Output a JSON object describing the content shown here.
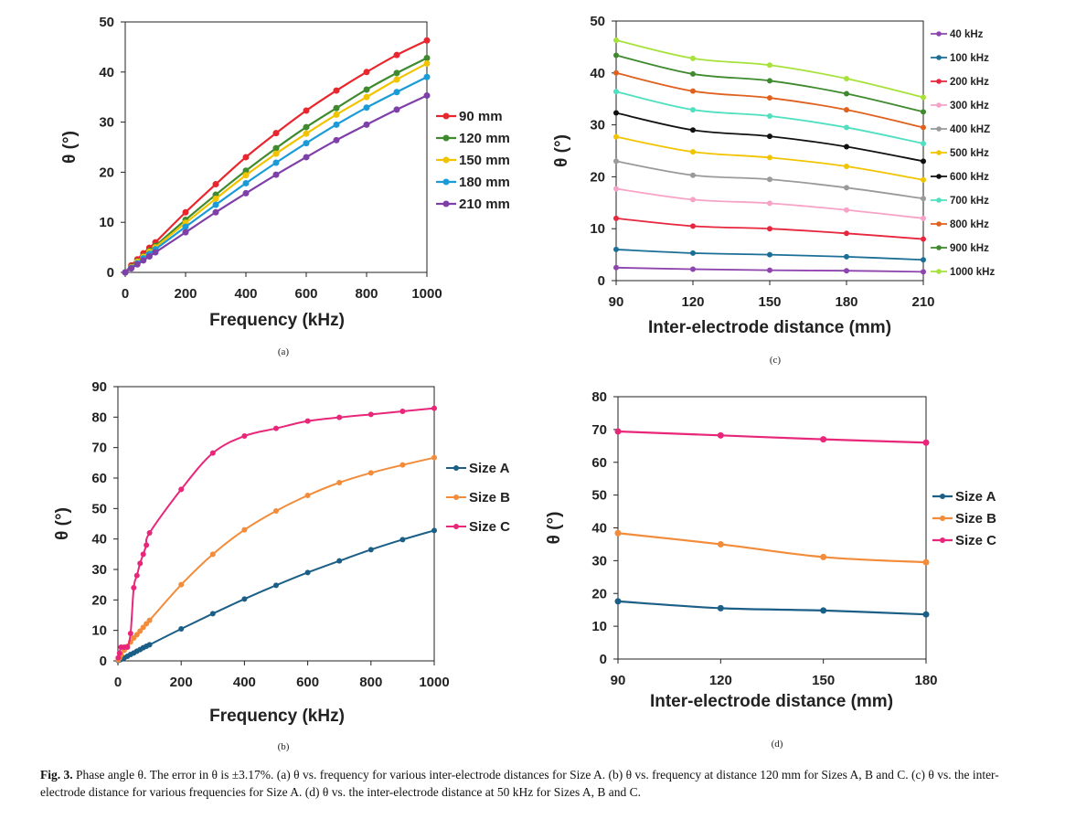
{
  "caption": {
    "label": "Fig. 3.",
    "text": "Phase angle θ. The error in θ is ±3.17%. (a) θ vs. frequency for various inter-electrode distances for Size A. (b) θ vs. frequency at distance 120 mm for Sizes A, B and C. (c) θ vs. the inter-electrode distance for various frequencies for Size A. (d) θ vs. the inter-electrode distance at 50 kHz for Sizes A, B and C."
  },
  "chart_data": [
    {
      "id": "a",
      "sublabel": "(a)",
      "type": "line",
      "xlabel": "Frequency (kHz)",
      "ylabel": "θ (°)",
      "xlim": [
        0,
        1000
      ],
      "ylim": [
        0,
        50
      ],
      "xticks": [
        0,
        200,
        400,
        600,
        800,
        1000
      ],
      "yticks": [
        0,
        10,
        20,
        30,
        40,
        50
      ],
      "grid": false,
      "legend": "center-right",
      "x": [
        0,
        20,
        40,
        60,
        80,
        100,
        200,
        300,
        400,
        500,
        600,
        700,
        800,
        900,
        1000
      ],
      "series": [
        {
          "name": "90 mm",
          "color": "#e8262d",
          "values": [
            0,
            1.4,
            2.6,
            3.8,
            4.9,
            6.0,
            12.0,
            17.6,
            23.0,
            27.8,
            32.3,
            36.3,
            40.0,
            43.4,
            46.3
          ]
        },
        {
          "name": "120 mm",
          "color": "#3f8a2e",
          "values": [
            0,
            1.1,
            2.2,
            3.2,
            4.3,
            5.3,
            10.5,
            15.5,
            20.3,
            24.8,
            29.0,
            32.8,
            36.5,
            39.8,
            42.8
          ]
        },
        {
          "name": "150 mm",
          "color": "#f2c400",
          "values": [
            0,
            1.0,
            2.1,
            3.1,
            4.1,
            5.0,
            9.9,
            14.7,
            19.4,
            23.7,
            27.7,
            31.5,
            35.0,
            38.5,
            41.7
          ]
        },
        {
          "name": "180 mm",
          "color": "#1a9bd7",
          "values": [
            0,
            0.9,
            1.8,
            2.8,
            3.7,
            4.6,
            9.1,
            13.5,
            17.8,
            21.9,
            25.8,
            29.5,
            32.9,
            36.0,
            39.0
          ]
        },
        {
          "name": "210 mm",
          "color": "#7e3fa8",
          "values": [
            0,
            0.8,
            1.6,
            2.4,
            3.2,
            4.0,
            8.0,
            12.0,
            15.8,
            19.5,
            23.0,
            26.4,
            29.5,
            32.5,
            35.3
          ]
        }
      ]
    },
    {
      "id": "b",
      "sublabel": "(b)",
      "type": "line",
      "xlabel": "Frequency (kHz)",
      "ylabel": "θ (°)",
      "xlim": [
        0,
        1000
      ],
      "ylim": [
        0,
        90
      ],
      "xticks": [
        0,
        200,
        400,
        600,
        800,
        1000
      ],
      "yticks": [
        0,
        10,
        20,
        30,
        40,
        50,
        60,
        70,
        80,
        90
      ],
      "grid": false,
      "legend": "right",
      "series": [
        {
          "name": "Size A",
          "color": "#1b5e86",
          "x": [
            1,
            5,
            10,
            20,
            30,
            40,
            50,
            60,
            70,
            80,
            90,
            100,
            200,
            300,
            400,
            500,
            600,
            700,
            800,
            900,
            1000
          ],
          "values": [
            0.1,
            0.3,
            0.5,
            1.0,
            1.5,
            2.1,
            2.6,
            3.2,
            3.7,
            4.3,
            4.8,
            5.3,
            10.5,
            15.5,
            20.3,
            24.8,
            29.0,
            32.8,
            36.5,
            39.8,
            42.8
          ]
        },
        {
          "name": "Size B",
          "color": "#f28c3a",
          "x": [
            1,
            5,
            10,
            20,
            30,
            40,
            50,
            60,
            70,
            80,
            90,
            100,
            200,
            300,
            400,
            500,
            600,
            700,
            800,
            900,
            1000
          ],
          "values": [
            0.3,
            1.0,
            2.0,
            3.5,
            4.8,
            6.2,
            7.5,
            8.6,
            9.8,
            11.0,
            12.2,
            13.3,
            25.0,
            35.0,
            43.0,
            49.2,
            54.3,
            58.5,
            61.7,
            64.3,
            66.7
          ]
        },
        {
          "name": "Size C",
          "color": "#e8267a",
          "x": [
            1,
            5,
            10,
            20,
            30,
            40,
            50,
            60,
            70,
            80,
            90,
            100,
            200,
            300,
            400,
            500,
            600,
            700,
            800,
            900,
            1000
          ],
          "values": [
            1.0,
            2.5,
            4.5,
            4.5,
            4.5,
            9.0,
            24.0,
            28.0,
            32.0,
            35.0,
            38.0,
            42.0,
            56.3,
            68.2,
            73.8,
            76.3,
            78.7,
            79.9,
            80.9,
            81.9,
            82.9
          ]
        }
      ]
    },
    {
      "id": "c",
      "sublabel": "(c)",
      "type": "line",
      "xlabel": "Inter-electrode distance (mm)",
      "ylabel": "θ (°)",
      "xlim": [
        90,
        210
      ],
      "ylim": [
        0,
        50
      ],
      "xticks": [
        90,
        120,
        150,
        180,
        210
      ],
      "yticks": [
        0,
        10,
        20,
        30,
        40,
        50
      ],
      "grid": false,
      "legend": "right",
      "x": [
        90,
        120,
        150,
        180,
        210
      ],
      "series": [
        {
          "name": "40 kHz",
          "color": "#8e44ad",
          "values": [
            2.5,
            2.2,
            2.0,
            1.9,
            1.7
          ]
        },
        {
          "name": "100 kHz",
          "color": "#1b6e96",
          "values": [
            6.0,
            5.3,
            5.0,
            4.6,
            4.0
          ]
        },
        {
          "name": "200 kHz",
          "color": "#e8263d",
          "values": [
            12.0,
            10.5,
            10.0,
            9.1,
            8.0
          ]
        },
        {
          "name": "300 kHz",
          "color": "#f7a3c7",
          "values": [
            17.7,
            15.6,
            14.9,
            13.6,
            12.0
          ]
        },
        {
          "name": "400 kHZ",
          "color": "#9a9a9a",
          "values": [
            23.0,
            20.3,
            19.5,
            17.9,
            15.8
          ]
        },
        {
          "name": "500 kHz",
          "color": "#f2c400",
          "values": [
            27.7,
            24.8,
            23.7,
            22.0,
            19.4
          ]
        },
        {
          "name": "600 kHz",
          "color": "#111111",
          "values": [
            32.3,
            29.0,
            27.8,
            25.8,
            23.0
          ]
        },
        {
          "name": "700 kHz",
          "color": "#4fe0c0",
          "values": [
            36.4,
            32.9,
            31.7,
            29.5,
            26.4
          ]
        },
        {
          "name": "800 kHz",
          "color": "#e0601e",
          "values": [
            40.0,
            36.5,
            35.2,
            32.9,
            29.5
          ]
        },
        {
          "name": "900 kHz",
          "color": "#3f8a2e",
          "values": [
            43.4,
            39.8,
            38.5,
            36.0,
            32.5
          ]
        },
        {
          "name": "1000 kHz",
          "color": "#a6e23a",
          "values": [
            46.3,
            42.8,
            41.5,
            38.9,
            35.3
          ]
        }
      ]
    },
    {
      "id": "d",
      "sublabel": "(d)",
      "type": "line",
      "xlabel": "Inter-electrode distance (mm)",
      "ylabel": "θ (°)",
      "xlim": [
        90,
        180
      ],
      "ylim": [
        0,
        80
      ],
      "xticks": [
        90,
        120,
        150,
        180
      ],
      "yticks": [
        0,
        10,
        20,
        30,
        40,
        50,
        60,
        70,
        80
      ],
      "grid": false,
      "legend": "right",
      "x": [
        90,
        120,
        150,
        180
      ],
      "series": [
        {
          "name": "Size A",
          "color": "#1b5e86",
          "values": [
            17.6,
            15.5,
            14.8,
            13.6
          ]
        },
        {
          "name": "Size B",
          "color": "#f28c3a",
          "values": [
            38.4,
            35.0,
            31.1,
            29.5
          ]
        },
        {
          "name": "Size C",
          "color": "#e8267a",
          "values": [
            69.4,
            68.2,
            67.0,
            66.0
          ]
        }
      ]
    }
  ]
}
